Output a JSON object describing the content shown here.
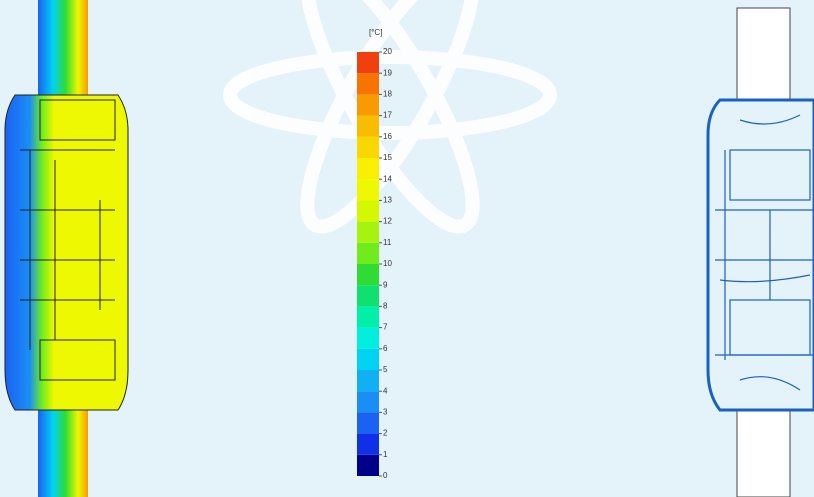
{
  "legend": {
    "unit": "[°C]",
    "ticks": [
      0,
      1,
      2,
      3,
      4,
      5,
      6,
      7,
      8,
      9,
      10,
      11,
      12,
      13,
      14,
      15,
      16,
      17,
      18,
      19,
      20
    ],
    "colors": [
      "#00008b",
      "#1030e8",
      "#1a62f2",
      "#1a8ef5",
      "#10b0f2",
      "#00d2f2",
      "#00eede",
      "#00f0a8",
      "#10e070",
      "#30dc34",
      "#70ec1c",
      "#a8f210",
      "#d4f800",
      "#eef800",
      "#f8f000",
      "#f8d800",
      "#f8bc00",
      "#f89a00",
      "#f87400",
      "#f04010"
    ]
  }
}
